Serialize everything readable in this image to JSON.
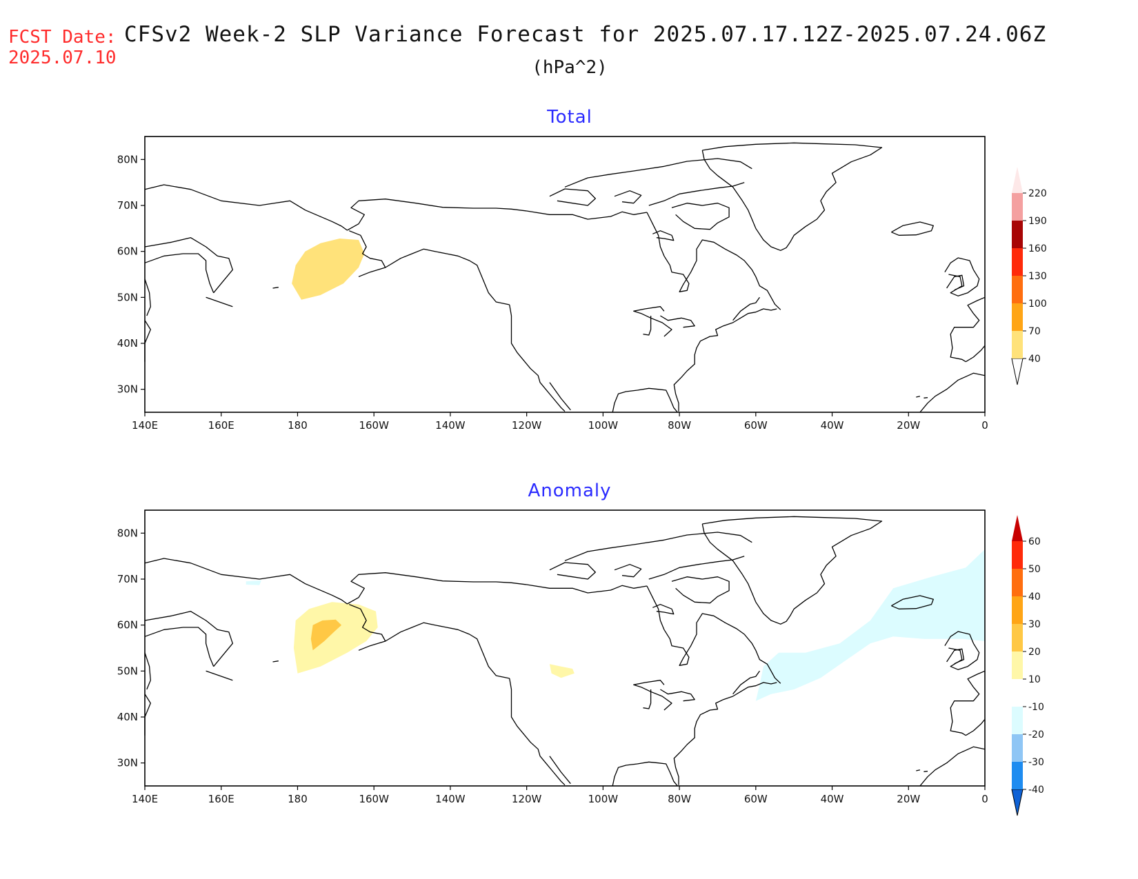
{
  "header": {
    "fcst_label": "FCST Date:",
    "fcst_date": "2025.07.10",
    "title": "CFSv2 Week-2 SLP Variance Forecast for 2025.07.17.12Z-2025.07.24.06Z",
    "units": "(hPa^2)"
  },
  "map": {
    "lon_range": [
      140,
      360
    ],
    "lat_range": [
      25,
      85
    ],
    "lon_ticks": [
      "140E",
      "160E",
      "180",
      "160W",
      "140W",
      "120W",
      "100W",
      "80W",
      "60W",
      "40W",
      "20W",
      "0"
    ],
    "lat_ticks": [
      "30N",
      "40N",
      "50N",
      "60N",
      "70N",
      "80N"
    ]
  },
  "panels": [
    {
      "id": "total",
      "title": "Total",
      "colorbar": {
        "levels": [
          "40",
          "70",
          "100",
          "130",
          "160",
          "190",
          "220"
        ],
        "colors": [
          "#ffe27a",
          "#ffa516",
          "#ff6e0f",
          "#ff2a0a",
          "#a80505",
          "#f4a0a0",
          "#fde8e8"
        ]
      },
      "shaded": [
        {
          "level": "40-70",
          "color": "#ffe27a",
          "points": [
            [
              181,
              49.5
            ],
            [
              186,
              50.5
            ],
            [
              192,
              53
            ],
            [
              196,
              56.5
            ],
            [
              197.5,
              59.5
            ],
            [
              196,
              62.5
            ],
            [
              191,
              62.8
            ],
            [
              186,
              61.8
            ],
            [
              182,
              60
            ],
            [
              179.5,
              57
            ],
            [
              178.5,
              53
            ]
          ]
        }
      ]
    },
    {
      "id": "anomaly",
      "title": "Anomaly",
      "colorbar": {
        "levels": [
          "-40",
          "-30",
          "-20",
          "-10",
          "10",
          "20",
          "30",
          "40",
          "50",
          "60"
        ],
        "colors": [
          "#0f62d6",
          "#1e8cf0",
          "#8fc6f5",
          "#dcfcff",
          "#ffffff",
          "#fff7a8",
          "#ffc845",
          "#ffa516",
          "#ff6e0f",
          "#ff2a0a",
          "#c80000"
        ]
      },
      "shaded": [
        {
          "level": "10-20",
          "color": "#fff7a8",
          "points": [
            [
              180,
              49.5
            ],
            [
              186,
              51
            ],
            [
              193,
              54
            ],
            [
              198,
              56.5
            ],
            [
              201,
              59.5
            ],
            [
              200.5,
              63
            ],
            [
              196,
              64.5
            ],
            [
              189,
              65
            ],
            [
              183,
              63.5
            ],
            [
              179.5,
              61
            ],
            [
              179,
              55
            ]
          ]
        },
        {
          "level": "20-30",
          "color": "#ffc845",
          "points": [
            [
              184,
              54.5
            ],
            [
              187,
              56.5
            ],
            [
              189.5,
              58.5
            ],
            [
              191.5,
              60
            ],
            [
              190,
              61.2
            ],
            [
              186.5,
              61
            ],
            [
              184,
              60
            ],
            [
              183.5,
              57
            ]
          ]
        },
        {
          "level": "10-20",
          "color": "#fff7a8",
          "points": [
            [
              246,
              51.5
            ],
            [
              249,
              51
            ],
            [
              252,
              50.5
            ],
            [
              252.5,
              49.5
            ],
            [
              249,
              48.5
            ],
            [
              246.5,
              49.5
            ]
          ]
        },
        {
          "level": "-10--20",
          "color": "#dcfcff",
          "points": [
            [
              166.5,
              69.5
            ],
            [
              170.5,
              69.7
            ],
            [
              170,
              68.7
            ],
            [
              166.5,
              68.8
            ]
          ]
        },
        {
          "level": "-10--20",
          "color": "#dcfcff",
          "points": [
            [
              300,
              43.5
            ],
            [
              304,
              45
            ],
            [
              310,
              46
            ],
            [
              317,
              48.5
            ],
            [
              323,
              52
            ],
            [
              330,
              56
            ],
            [
              336,
              57.5
            ],
            [
              344,
              57
            ],
            [
              354,
              57
            ],
            [
              360,
              56.5
            ],
            [
              360,
              76.5
            ],
            [
              355,
              72.5
            ],
            [
              346,
              70.5
            ],
            [
              336,
              68
            ],
            [
              330,
              61
            ],
            [
              322,
              56
            ],
            [
              313,
              54
            ],
            [
              306,
              54
            ],
            [
              302,
              51
            ],
            [
              301,
              47
            ]
          ]
        }
      ]
    }
  ]
}
